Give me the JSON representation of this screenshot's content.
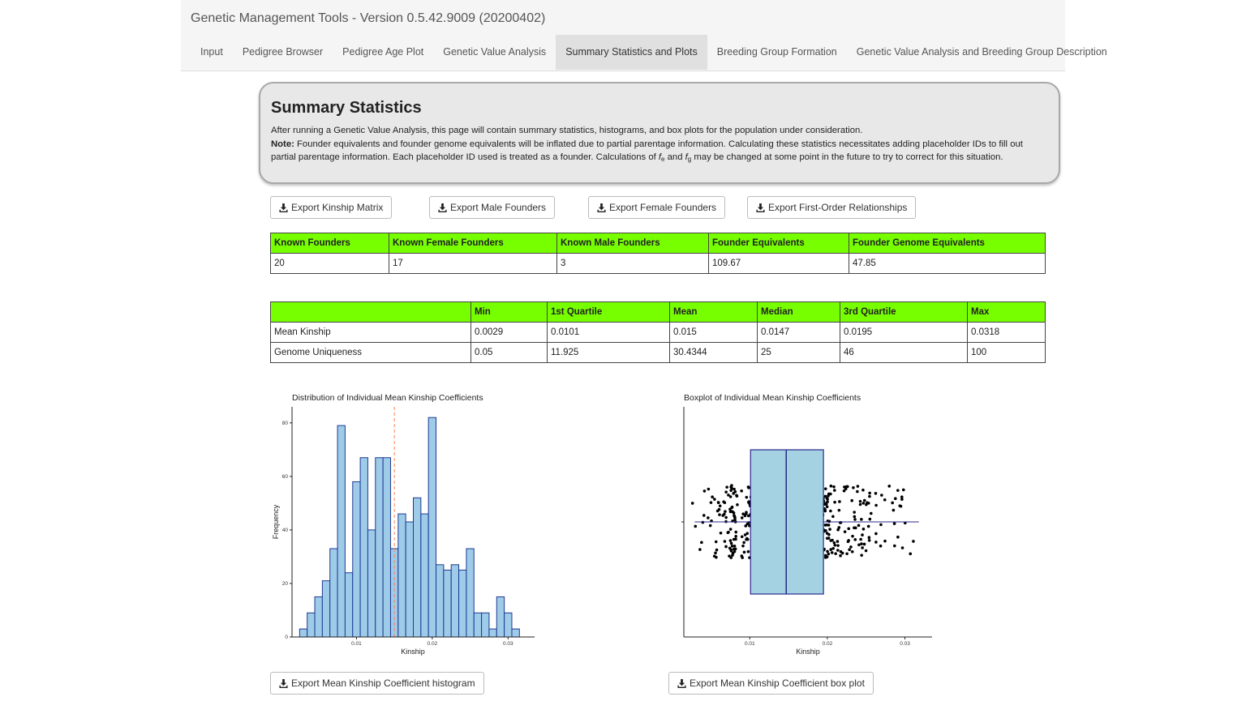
{
  "app": {
    "title": "Genetic Management Tools - Version 0.5.42.9009 (20200402)"
  },
  "tabs": [
    {
      "label": "Input"
    },
    {
      "label": "Pedigree Browser"
    },
    {
      "label": "Pedigree Age Plot"
    },
    {
      "label": "Genetic Value Analysis"
    },
    {
      "label": "Summary Statistics and Plots",
      "active": true
    },
    {
      "label": "Breeding Group Formation"
    },
    {
      "label": "Genetic Value Analysis and Breeding Group Description"
    }
  ],
  "summary": {
    "title": "Summary Statistics",
    "intro": "After running a Genetic Value Analysis, this page will contain summary statistics, histograms, and box plots for the population under consideration.",
    "note_label": "Note:",
    "note_text_1": "Founder equivalents and founder genome equivalents will be inflated due to partial parentage information. Calculating these statistics necessitates adding placeholder IDs to fill out partial parentage information. Each placeholder ID used is treated as a founder. Calculations of ",
    "fe_var": "f",
    "fe_sub": "e",
    "and_word": " and ",
    "fg_var": "f",
    "fg_sub": "g",
    "note_text_2": " may be changed at some point in the future to try to correct for this situation."
  },
  "export_buttons": {
    "kinship_matrix": "Export Kinship Matrix",
    "male_founders": "Export Male Founders",
    "female_founders": "Export Female Founders",
    "first_order": "Export First-Order Relationships",
    "histogram": "Export Mean Kinship Coefficient histogram",
    "boxplot": "Export Mean Kinship Coefficient box plot"
  },
  "founders_table": {
    "headers": [
      "Known Founders",
      "Known Female Founders",
      "Known Male Founders",
      "Founder Equivalents",
      "Founder Genome Equivalents"
    ],
    "row": [
      "20",
      "17",
      "3",
      "109.67",
      "47.85"
    ]
  },
  "quartile_table": {
    "headers": [
      "",
      "Min",
      "1st Quartile",
      "Mean",
      "Median",
      "3rd Quartile",
      "Max"
    ],
    "rows": [
      [
        "Mean Kinship",
        "0.0029",
        "0.0101",
        "0.015",
        "0.0147",
        "0.0195",
        "0.0318"
      ],
      [
        "Genome Uniqueness",
        "0.05",
        "11.925",
        "30.4344",
        "25",
        "46",
        "100"
      ]
    ]
  },
  "chart_data": [
    {
      "type": "bar",
      "title": "Distribution of Individual Mean Kinship Coefficients",
      "xlabel": "Kinship",
      "ylabel": "Frequency",
      "xlim": [
        0.0015,
        0.0335
      ],
      "ylim": [
        0,
        86
      ],
      "xticks": [
        "0.01",
        "0.02",
        "0.03"
      ],
      "yticks": [
        "0",
        "20",
        "40",
        "60",
        "80"
      ],
      "bin_start": 0.0025,
      "bin_width": 0.001,
      "values": [
        3,
        9,
        15,
        21,
        33,
        79,
        24,
        58,
        67,
        40,
        67,
        67,
        33,
        46,
        43,
        52,
        46,
        82,
        27,
        25,
        27,
        25,
        33,
        9,
        9,
        3,
        15,
        9,
        3
      ],
      "mean_line": 0.015,
      "colors": {
        "bar_fill": "#9ecbe8",
        "bar_stroke": "#1f3a93",
        "mean_line": "#ff7f50"
      }
    },
    {
      "type": "box",
      "title": "Boxplot of Individual Mean Kinship Coefficients",
      "xlabel": "Kinship",
      "xlim": [
        0.0015,
        0.0335
      ],
      "xticks": [
        "0.01",
        "0.02",
        "0.03"
      ],
      "box": {
        "min": 0.0029,
        "q1": 0.0101,
        "median": 0.0147,
        "q3": 0.0195,
        "max": 0.0318
      },
      "colors": {
        "box_fill": "#a5d2e3",
        "box_stroke": "#2a2a8a",
        "points": "#000000"
      }
    }
  ]
}
